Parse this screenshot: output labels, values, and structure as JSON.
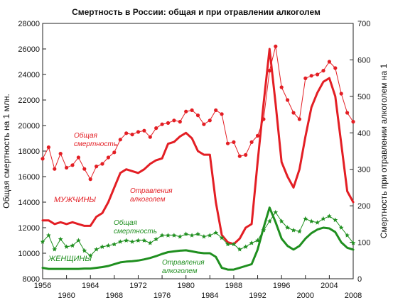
{
  "chart_data": {
    "type": "line",
    "title": "Смертность в России: общая и при отравлении алкоголем",
    "ylabel_left": "Общая смертность на 1 млн.",
    "ylabel_right": "Смертность при отравлении алкоголем на 1",
    "x_range": [
      1956,
      2008
    ],
    "ylim_left": [
      8000,
      28000
    ],
    "ylim_right": [
      0,
      700
    ],
    "x_ticks_top": [
      "1956",
      "1964",
      "1972",
      "1980",
      "1988",
      "1996",
      "2004"
    ],
    "x_ticks_bottom": [
      "1960",
      "1968",
      "1976",
      "1984",
      "1992",
      "2000",
      "2008"
    ],
    "x_ticks_top_values": [
      1956,
      1964,
      1972,
      1980,
      1988,
      1996,
      2004
    ],
    "x_ticks_bottom_values": [
      1960,
      1968,
      1976,
      1984,
      1992,
      2000,
      2008
    ],
    "y_ticks_left": [
      "8000",
      "10000",
      "12000",
      "14000",
      "16000",
      "18000",
      "20000",
      "22000",
      "24000",
      "26000",
      "28000"
    ],
    "y_ticks_left_values": [
      8000,
      10000,
      12000,
      14000,
      16000,
      18000,
      20000,
      22000,
      24000,
      26000,
      28000
    ],
    "y_ticks_right": [
      "0",
      "100",
      "200",
      "300",
      "400",
      "500",
      "600",
      "700"
    ],
    "y_ticks_right_values": [
      0,
      100,
      200,
      300,
      400,
      500,
      600,
      700
    ],
    "grid": false,
    "colors": {
      "men": "#e31e24",
      "women": "#1f8f1f"
    },
    "annotations": {
      "men_total_1": "Общая",
      "men_total_2": "смертность",
      "men_label": "МУЖЧИНЫ",
      "men_poison_1": "Отравления",
      "men_poison_2": "алкоголем",
      "women_total_1": "Общая",
      "women_total_2": "смертность",
      "women_label": "ЖЕНЩИНЫ",
      "women_poison_1": "Отравления",
      "women_poison_2": "алкоголем"
    },
    "series": [
      {
        "key": "men_total",
        "axis": "left",
        "x": [
          1956,
          1957,
          1958,
          1959,
          1960,
          1961,
          1962,
          1963,
          1964,
          1965,
          1966,
          1967,
          1968,
          1969,
          1970,
          1971,
          1972,
          1973,
          1974,
          1975,
          1976,
          1977,
          1978,
          1979,
          1980,
          1981,
          1982,
          1983,
          1984,
          1985,
          1986,
          1987,
          1988,
          1989,
          1990,
          1991,
          1992,
          1993,
          1994,
          1995,
          1996,
          1997,
          1998,
          1999,
          2000,
          2001,
          2002,
          2003,
          2004,
          2005,
          2006,
          2007,
          2008
        ],
        "values": [
          17400,
          18300,
          16600,
          17800,
          16700,
          16900,
          17500,
          16600,
          15800,
          16800,
          17000,
          17500,
          17900,
          18900,
          19400,
          19300,
          19500,
          19600,
          19100,
          19800,
          20100,
          20200,
          20400,
          20300,
          21100,
          21200,
          20800,
          20100,
          20400,
          21200,
          20900,
          18600,
          18700,
          17600,
          17700,
          18700,
          19200,
          20500,
          24300,
          26200,
          23000,
          22000,
          21000,
          20500,
          23700,
          23900,
          24000,
          24300,
          25000,
          24500,
          22500,
          21000,
          20300
        ]
      },
      {
        "key": "men_poison",
        "axis": "right",
        "x": [
          1956,
          1957,
          1958,
          1959,
          1960,
          1961,
          1962,
          1963,
          1964,
          1965,
          1966,
          1967,
          1968,
          1969,
          1970,
          1971,
          1972,
          1973,
          1974,
          1975,
          1976,
          1977,
          1978,
          1979,
          1980,
          1981,
          1982,
          1983,
          1984,
          1985,
          1986,
          1987,
          1988,
          1989,
          1990,
          1991,
          1992,
          1993,
          1994,
          1995,
          1996,
          1997,
          1998,
          1999,
          2000,
          2001,
          2002,
          2003,
          2004,
          2005,
          2006,
          2007,
          2008
        ],
        "values": [
          160,
          160,
          150,
          155,
          150,
          155,
          150,
          145,
          145,
          170,
          180,
          210,
          250,
          290,
          300,
          295,
          290,
          300,
          315,
          325,
          330,
          370,
          375,
          390,
          400,
          385,
          350,
          340,
          340,
          210,
          120,
          100,
          95,
          110,
          140,
          150,
          320,
          480,
          630,
          480,
          320,
          280,
          250,
          300,
          390,
          470,
          510,
          540,
          550,
          500,
          370,
          240,
          210
        ]
      },
      {
        "key": "women_total",
        "axis": "left",
        "x": [
          1956,
          1957,
          1958,
          1959,
          1960,
          1961,
          1962,
          1963,
          1964,
          1965,
          1966,
          1967,
          1968,
          1969,
          1970,
          1971,
          1972,
          1973,
          1974,
          1975,
          1976,
          1977,
          1978,
          1979,
          1980,
          1981,
          1982,
          1983,
          1984,
          1985,
          1986,
          1987,
          1988,
          1989,
          1990,
          1991,
          1992,
          1993,
          1994,
          1995,
          1996,
          1997,
          1998,
          1999,
          2000,
          2001,
          2002,
          2003,
          2004,
          2005,
          2006,
          2007,
          2008
        ],
        "values": [
          10900,
          11400,
          10300,
          11100,
          10500,
          10600,
          11000,
          10200,
          9800,
          10300,
          10500,
          10600,
          10700,
          10900,
          11000,
          10900,
          11000,
          11000,
          10800,
          11100,
          11400,
          11400,
          11400,
          11300,
          11500,
          11400,
          11500,
          11300,
          11400,
          11600,
          11200,
          10700,
          10700,
          10300,
          10500,
          10800,
          11000,
          11800,
          12500,
          13200,
          12500,
          12000,
          11800,
          11700,
          12700,
          12500,
          12400,
          12700,
          12900,
          12600,
          12000,
          11400,
          10800
        ]
      },
      {
        "key": "women_poison",
        "axis": "right",
        "x": [
          1956,
          1957,
          1958,
          1959,
          1960,
          1961,
          1962,
          1963,
          1964,
          1965,
          1966,
          1967,
          1968,
          1969,
          1970,
          1971,
          1972,
          1973,
          1974,
          1975,
          1976,
          1977,
          1978,
          1979,
          1980,
          1981,
          1982,
          1983,
          1984,
          1985,
          1986,
          1987,
          1988,
          1989,
          1990,
          1991,
          1992,
          1993,
          1994,
          1995,
          1996,
          1997,
          1998,
          1999,
          2000,
          2001,
          2002,
          2003,
          2004,
          2005,
          2006,
          2007,
          2008
        ],
        "values": [
          30,
          27,
          27,
          27,
          27,
          27,
          27,
          28,
          28,
          30,
          32,
          35,
          40,
          45,
          47,
          48,
          50,
          53,
          57,
          62,
          68,
          73,
          75,
          77,
          78,
          75,
          72,
          70,
          70,
          60,
          30,
          25,
          25,
          30,
          35,
          40,
          80,
          140,
          195,
          155,
          110,
          90,
          80,
          90,
          110,
          125,
          135,
          140,
          138,
          128,
          100,
          85,
          80
        ]
      }
    ]
  }
}
